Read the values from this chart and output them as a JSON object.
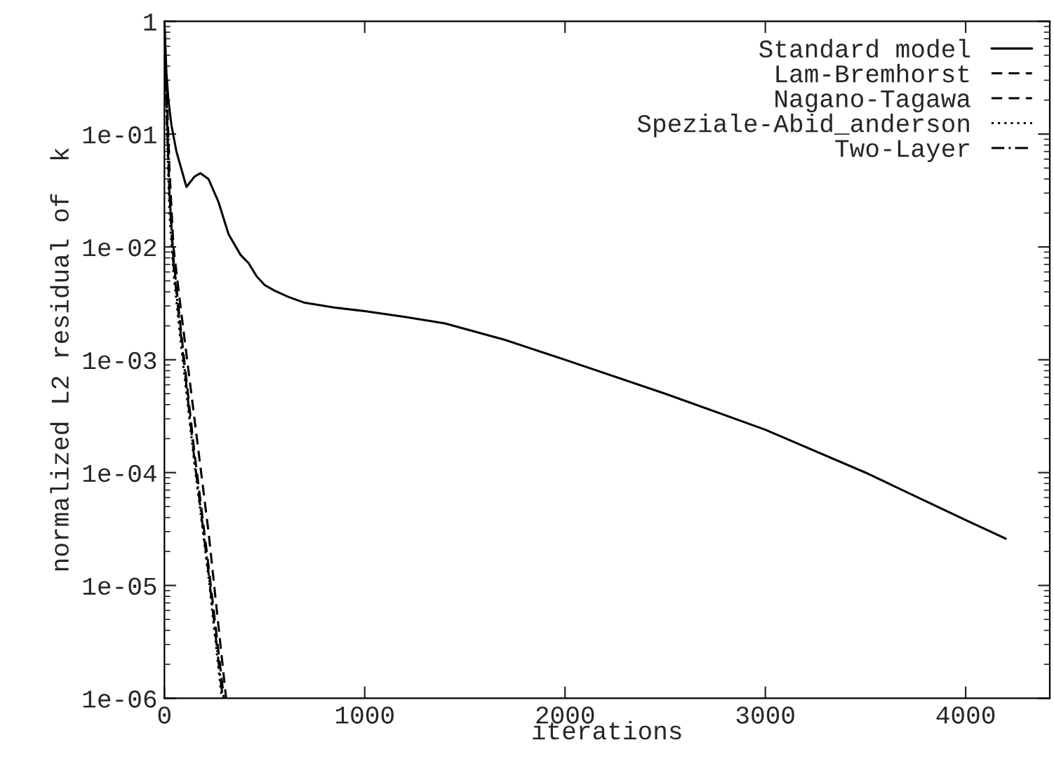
{
  "chart_data": {
    "type": "line",
    "xlabel": "iterations",
    "ylabel": "normalized L2 residual of  k",
    "log": "y",
    "legend": "top right",
    "xlim": [
      0,
      4420
    ],
    "xticks": [
      0,
      1000,
      2000,
      3000,
      4000
    ],
    "ylim": [
      1e-06,
      1
    ],
    "yticks": [
      {
        "value": 1,
        "label": "1"
      },
      {
        "value": 0.1,
        "label": "1e-01"
      },
      {
        "value": 0.01,
        "label": "1e-02"
      },
      {
        "value": 0.001,
        "label": "1e-03"
      },
      {
        "value": 0.0001,
        "label": "1e-04"
      },
      {
        "value": 1e-05,
        "label": "1e-05"
      },
      {
        "value": 1e-06,
        "label": "1e-06"
      }
    ],
    "series": [
      {
        "name": "Standard model",
        "color": "#000000",
        "line_style": "solid",
        "x": [
          0,
          10,
          20,
          35,
          60,
          110,
          150,
          180,
          220,
          270,
          320,
          380,
          420,
          460,
          500,
          550,
          620,
          700,
          850,
          1000,
          1200,
          1400,
          1700,
          2000,
          2500,
          3000,
          3500,
          4000,
          4200
        ],
        "values": [
          1,
          0.35,
          0.2,
          0.12,
          0.07,
          0.034,
          0.042,
          0.045,
          0.04,
          0.025,
          0.013,
          0.0085,
          0.0072,
          0.0055,
          0.0046,
          0.0041,
          0.0036,
          0.0032,
          0.0029,
          0.0027,
          0.0024,
          0.0021,
          0.0015,
          0.001,
          0.0005,
          0.00024,
          0.0001,
          3.8e-05,
          2.6e-05
        ]
      },
      {
        "name": "Lam-Bremhorst",
        "color": "#000000",
        "line_style": "dashed",
        "x": [
          0,
          10,
          25,
          45,
          80,
          150,
          220,
          308
        ],
        "values": [
          0.95,
          0.3,
          0.05,
          0.01,
          0.003,
          0.0003,
          3e-05,
          1e-06
        ]
      },
      {
        "name": "Nagano-Tagawa",
        "color": "#000000",
        "line_style": "dashed",
        "x": [
          0,
          10,
          25,
          45,
          80,
          150,
          220,
          297
        ],
        "values": [
          0.85,
          0.2,
          0.03,
          0.008,
          0.002,
          0.00015,
          1.5e-05,
          1e-06
        ]
      },
      {
        "name": "Speziale-Abid_anderson",
        "color": "#000000",
        "line_style": "dotted",
        "x": [
          0,
          10,
          25,
          45,
          80,
          150,
          220,
          286
        ],
        "values": [
          0.7,
          0.15,
          0.02,
          0.006,
          0.0015,
          0.00012,
          1.2e-05,
          1e-06
        ]
      },
      {
        "name": "Two-Layer",
        "color": "#000000",
        "line_style": "dashdot",
        "x": [
          0,
          10,
          25,
          45,
          80,
          150,
          220,
          291
        ],
        "values": [
          0.6,
          0.2,
          0.03,
          0.007,
          0.0018,
          0.00013,
          1.3e-05,
          1e-06
        ]
      }
    ]
  }
}
